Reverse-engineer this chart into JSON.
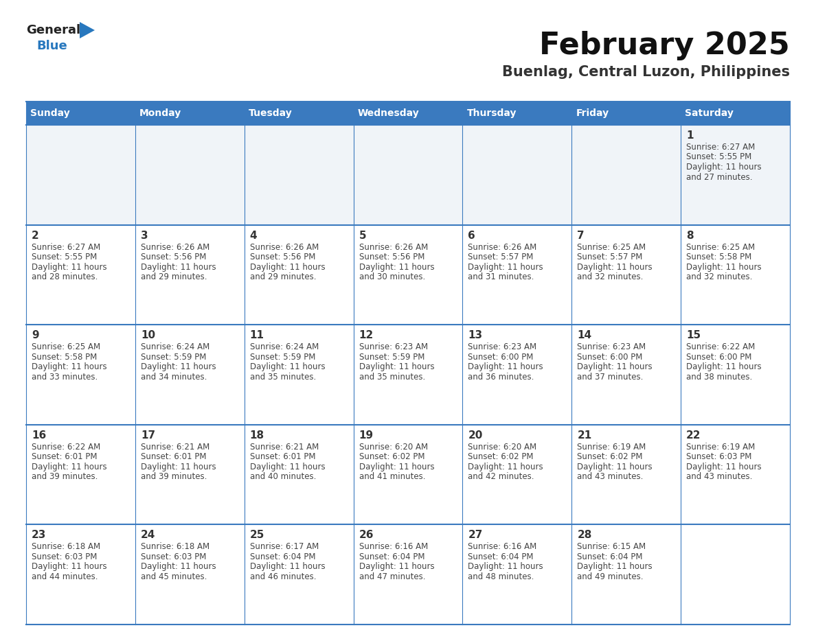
{
  "title": "February 2025",
  "subtitle": "Buenlag, Central Luzon, Philippines",
  "header_bg": "#3a7abf",
  "header_text": "#ffffff",
  "cell_bg": "#ffffff",
  "cell_gray_bg": "#f0f4f8",
  "border_color": "#3a7abf",
  "grid_color": "#3a7abf",
  "text_color": "#444444",
  "day_num_color": "#333333",
  "day_headers": [
    "Sunday",
    "Monday",
    "Tuesday",
    "Wednesday",
    "Thursday",
    "Friday",
    "Saturday"
  ],
  "weeks": [
    [
      {
        "day": null,
        "sunrise": null,
        "sunset": null,
        "daylight_line1": null,
        "daylight_line2": null
      },
      {
        "day": null,
        "sunrise": null,
        "sunset": null,
        "daylight_line1": null,
        "daylight_line2": null
      },
      {
        "day": null,
        "sunrise": null,
        "sunset": null,
        "daylight_line1": null,
        "daylight_line2": null
      },
      {
        "day": null,
        "sunrise": null,
        "sunset": null,
        "daylight_line1": null,
        "daylight_line2": null
      },
      {
        "day": null,
        "sunrise": null,
        "sunset": null,
        "daylight_line1": null,
        "daylight_line2": null
      },
      {
        "day": null,
        "sunrise": null,
        "sunset": null,
        "daylight_line1": null,
        "daylight_line2": null
      },
      {
        "day": 1,
        "sunrise": "6:27 AM",
        "sunset": "5:55 PM",
        "daylight_line1": "Daylight: 11 hours",
        "daylight_line2": "and 27 minutes."
      }
    ],
    [
      {
        "day": 2,
        "sunrise": "6:27 AM",
        "sunset": "5:55 PM",
        "daylight_line1": "Daylight: 11 hours",
        "daylight_line2": "and 28 minutes."
      },
      {
        "day": 3,
        "sunrise": "6:26 AM",
        "sunset": "5:56 PM",
        "daylight_line1": "Daylight: 11 hours",
        "daylight_line2": "and 29 minutes."
      },
      {
        "day": 4,
        "sunrise": "6:26 AM",
        "sunset": "5:56 PM",
        "daylight_line1": "Daylight: 11 hours",
        "daylight_line2": "and 29 minutes."
      },
      {
        "day": 5,
        "sunrise": "6:26 AM",
        "sunset": "5:56 PM",
        "daylight_line1": "Daylight: 11 hours",
        "daylight_line2": "and 30 minutes."
      },
      {
        "day": 6,
        "sunrise": "6:26 AM",
        "sunset": "5:57 PM",
        "daylight_line1": "Daylight: 11 hours",
        "daylight_line2": "and 31 minutes."
      },
      {
        "day": 7,
        "sunrise": "6:25 AM",
        "sunset": "5:57 PM",
        "daylight_line1": "Daylight: 11 hours",
        "daylight_line2": "and 32 minutes."
      },
      {
        "day": 8,
        "sunrise": "6:25 AM",
        "sunset": "5:58 PM",
        "daylight_line1": "Daylight: 11 hours",
        "daylight_line2": "and 32 minutes."
      }
    ],
    [
      {
        "day": 9,
        "sunrise": "6:25 AM",
        "sunset": "5:58 PM",
        "daylight_line1": "Daylight: 11 hours",
        "daylight_line2": "and 33 minutes."
      },
      {
        "day": 10,
        "sunrise": "6:24 AM",
        "sunset": "5:59 PM",
        "daylight_line1": "Daylight: 11 hours",
        "daylight_line2": "and 34 minutes."
      },
      {
        "day": 11,
        "sunrise": "6:24 AM",
        "sunset": "5:59 PM",
        "daylight_line1": "Daylight: 11 hours",
        "daylight_line2": "and 35 minutes."
      },
      {
        "day": 12,
        "sunrise": "6:23 AM",
        "sunset": "5:59 PM",
        "daylight_line1": "Daylight: 11 hours",
        "daylight_line2": "and 35 minutes."
      },
      {
        "day": 13,
        "sunrise": "6:23 AM",
        "sunset": "6:00 PM",
        "daylight_line1": "Daylight: 11 hours",
        "daylight_line2": "and 36 minutes."
      },
      {
        "day": 14,
        "sunrise": "6:23 AM",
        "sunset": "6:00 PM",
        "daylight_line1": "Daylight: 11 hours",
        "daylight_line2": "and 37 minutes."
      },
      {
        "day": 15,
        "sunrise": "6:22 AM",
        "sunset": "6:00 PM",
        "daylight_line1": "Daylight: 11 hours",
        "daylight_line2": "and 38 minutes."
      }
    ],
    [
      {
        "day": 16,
        "sunrise": "6:22 AM",
        "sunset": "6:01 PM",
        "daylight_line1": "Daylight: 11 hours",
        "daylight_line2": "and 39 minutes."
      },
      {
        "day": 17,
        "sunrise": "6:21 AM",
        "sunset": "6:01 PM",
        "daylight_line1": "Daylight: 11 hours",
        "daylight_line2": "and 39 minutes."
      },
      {
        "day": 18,
        "sunrise": "6:21 AM",
        "sunset": "6:01 PM",
        "daylight_line1": "Daylight: 11 hours",
        "daylight_line2": "and 40 minutes."
      },
      {
        "day": 19,
        "sunrise": "6:20 AM",
        "sunset": "6:02 PM",
        "daylight_line1": "Daylight: 11 hours",
        "daylight_line2": "and 41 minutes."
      },
      {
        "day": 20,
        "sunrise": "6:20 AM",
        "sunset": "6:02 PM",
        "daylight_line1": "Daylight: 11 hours",
        "daylight_line2": "and 42 minutes."
      },
      {
        "day": 21,
        "sunrise": "6:19 AM",
        "sunset": "6:02 PM",
        "daylight_line1": "Daylight: 11 hours",
        "daylight_line2": "and 43 minutes."
      },
      {
        "day": 22,
        "sunrise": "6:19 AM",
        "sunset": "6:03 PM",
        "daylight_line1": "Daylight: 11 hours",
        "daylight_line2": "and 43 minutes."
      }
    ],
    [
      {
        "day": 23,
        "sunrise": "6:18 AM",
        "sunset": "6:03 PM",
        "daylight_line1": "Daylight: 11 hours",
        "daylight_line2": "and 44 minutes."
      },
      {
        "day": 24,
        "sunrise": "6:18 AM",
        "sunset": "6:03 PM",
        "daylight_line1": "Daylight: 11 hours",
        "daylight_line2": "and 45 minutes."
      },
      {
        "day": 25,
        "sunrise": "6:17 AM",
        "sunset": "6:04 PM",
        "daylight_line1": "Daylight: 11 hours",
        "daylight_line2": "and 46 minutes."
      },
      {
        "day": 26,
        "sunrise": "6:16 AM",
        "sunset": "6:04 PM",
        "daylight_line1": "Daylight: 11 hours",
        "daylight_line2": "and 47 minutes."
      },
      {
        "day": 27,
        "sunrise": "6:16 AM",
        "sunset": "6:04 PM",
        "daylight_line1": "Daylight: 11 hours",
        "daylight_line2": "and 48 minutes."
      },
      {
        "day": 28,
        "sunrise": "6:15 AM",
        "sunset": "6:04 PM",
        "daylight_line1": "Daylight: 11 hours",
        "daylight_line2": "and 49 minutes."
      },
      {
        "day": null,
        "sunrise": null,
        "sunset": null,
        "daylight_line1": null,
        "daylight_line2": null
      }
    ]
  ],
  "logo_general_color": "#222222",
  "logo_blue_color": "#2878be",
  "logo_triangle_color": "#2878be"
}
